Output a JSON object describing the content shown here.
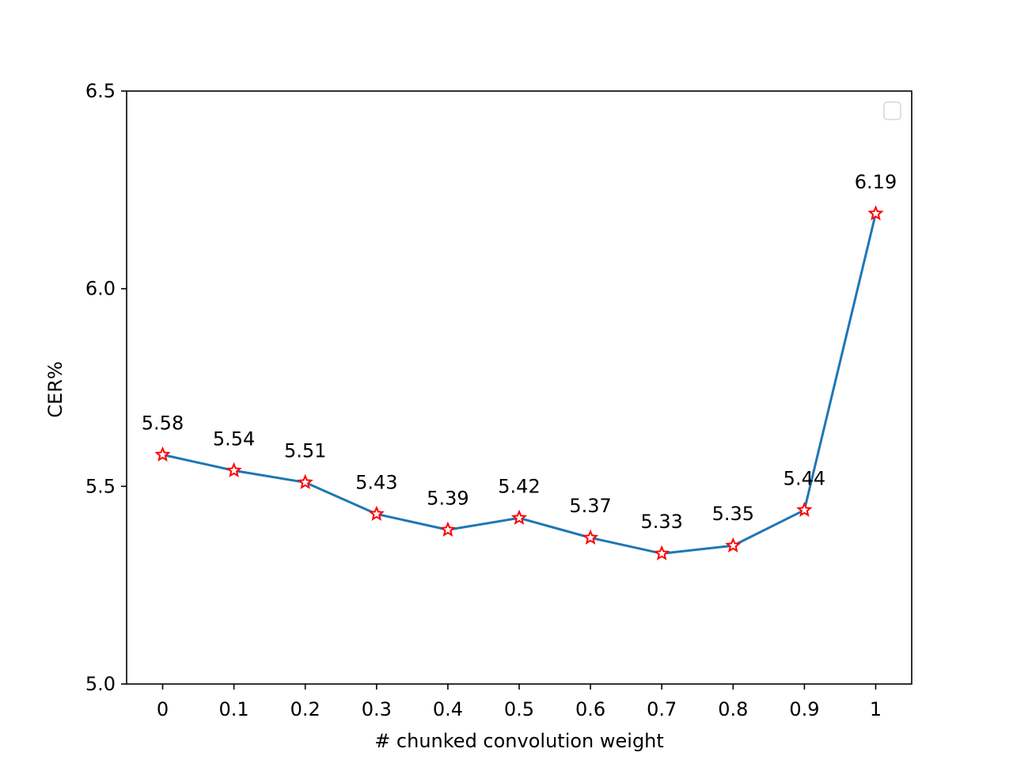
{
  "chart_data": {
    "type": "line",
    "title": "",
    "xlabel": "# chunked convolution weight",
    "ylabel": "CER%",
    "categories": [
      "0",
      "0.1",
      "0.2",
      "0.3",
      "0.4",
      "0.5",
      "0.6",
      "0.7",
      "0.8",
      "0.9",
      "1"
    ],
    "series": [
      {
        "values": [
          5.58,
          5.54,
          5.51,
          5.43,
          5.39,
          5.42,
          5.37,
          5.33,
          5.35,
          5.44,
          6.19
        ],
        "labels": [
          "5.58",
          "5.54",
          "5.51",
          "5.43",
          "5.39",
          "5.42",
          "5.37",
          "5.33",
          "5.35",
          "5.44",
          "6.19"
        ],
        "color": "#1f77b4",
        "marker": "star",
        "marker_color": "#ff0000"
      }
    ],
    "ylim": [
      5.0,
      6.5
    ],
    "yticks": [
      "5.0",
      "5.5",
      "6.0",
      "6.5"
    ],
    "grid": false,
    "legend": "top-right (empty)"
  }
}
